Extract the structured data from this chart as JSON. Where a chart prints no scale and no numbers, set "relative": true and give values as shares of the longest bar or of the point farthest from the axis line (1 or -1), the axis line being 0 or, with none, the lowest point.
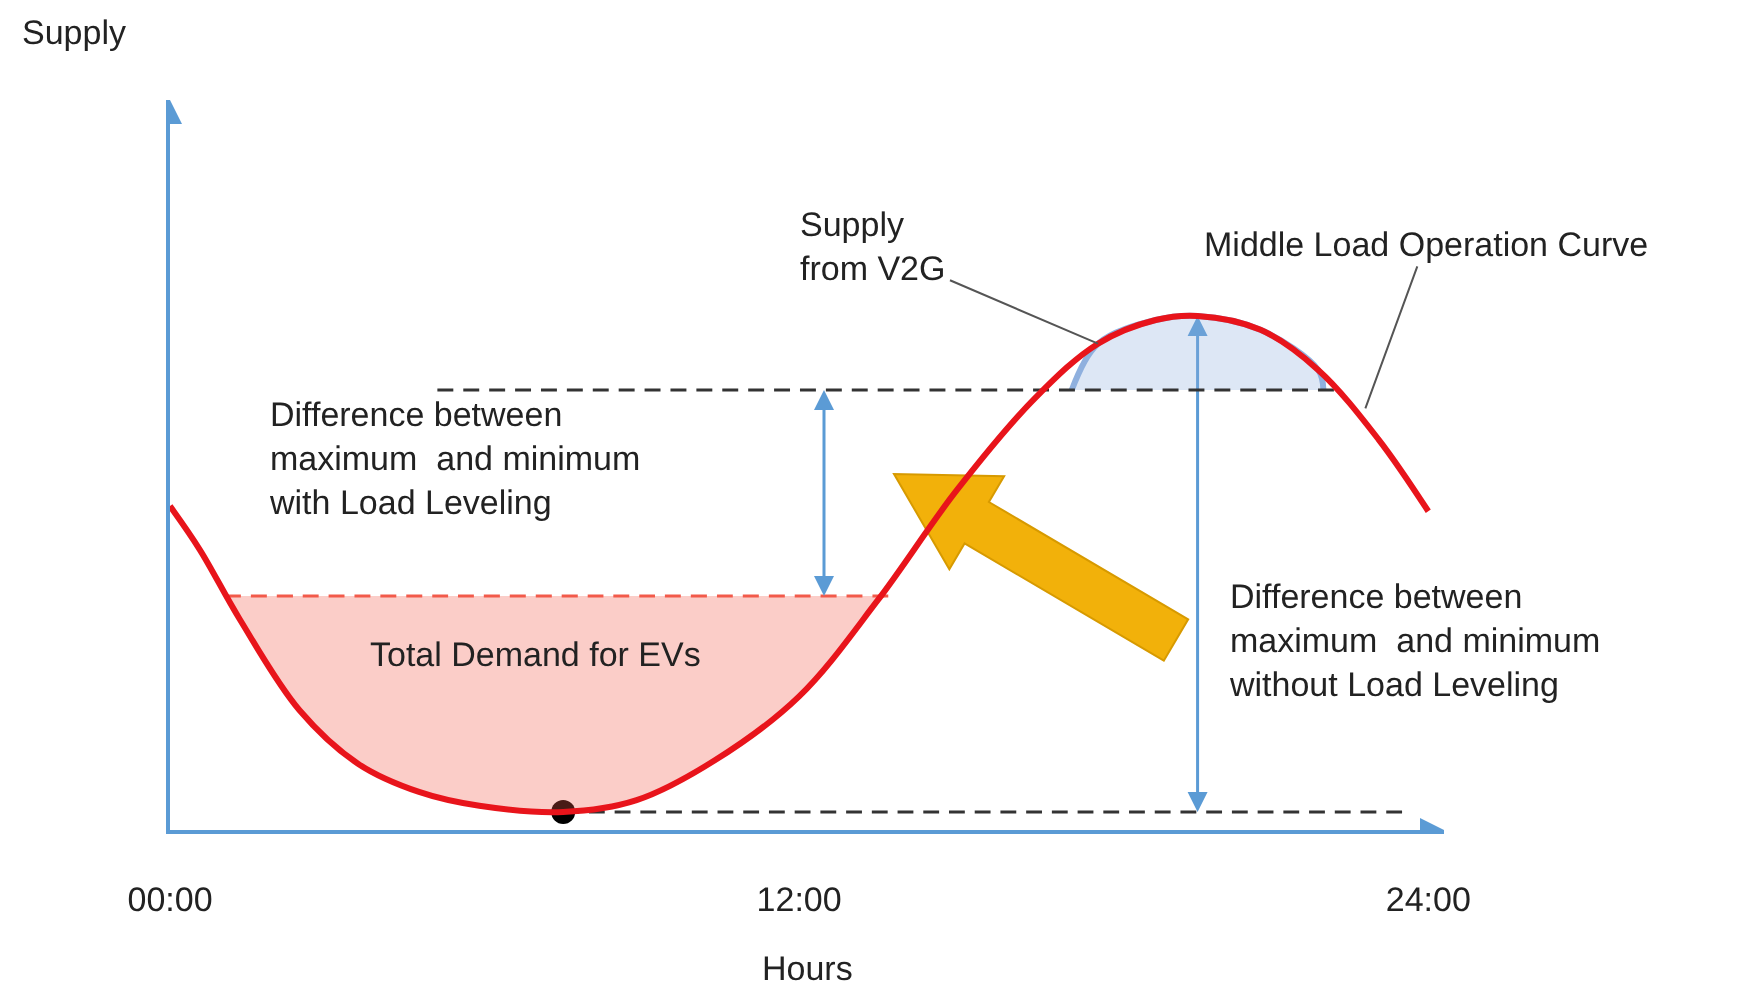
{
  "chart_data": {
    "type": "line",
    "relative": true,
    "xlabel": "Hours",
    "xlim": [
      0,
      24.3
    ],
    "xticks": [
      {
        "value": 0,
        "label": "00:00"
      },
      {
        "value": 12,
        "label": "12:00"
      },
      {
        "value": 24,
        "label": "24:00"
      }
    ],
    "grid": false,
    "marker": "none",
    "series": [
      {
        "color": "#e8141b",
        "line_style": "solid",
        "x": [
          0,
          0.57,
          1.33,
          2.47,
          3.6,
          4.75,
          5.9,
          7.5,
          8.9,
          10.4,
          12,
          13.5,
          15,
          16.5,
          17.7,
          18.8,
          19.6,
          20.8,
          21.9,
          23.05,
          24
        ],
        "values": [
          0.63,
          0.545,
          0.41,
          0.233,
          0.128,
          0.074,
          0.047,
          0.035,
          0.058,
          0.136,
          0.26,
          0.447,
          0.66,
          0.84,
          0.946,
          0.992,
          1.0,
          0.973,
          0.895,
          0.76,
          0.62
        ]
      },
      {
        "color": "#f25a4a",
        "line_style": "dashed",
        "x": [
          1.05,
          1.33,
          2.47,
          3.6,
          4.75,
          5.9,
          7.5,
          8.9,
          10.4,
          12,
          13.5,
          13.7
        ],
        "values": [
          0.455,
          0.455,
          0.455,
          0.455,
          0.455,
          0.455,
          0.455,
          0.455,
          0.455,
          0.455,
          0.455,
          0.455
        ],
        "lower": [
          0.455,
          0.41,
          0.233,
          0.128,
          0.074,
          0.047,
          0.035,
          0.058,
          0.136,
          0.26,
          0.447,
          0.455
        ],
        "upper": [
          0.455,
          0.455,
          0.455,
          0.455,
          0.455,
          0.455,
          0.455,
          0.455,
          0.455,
          0.455,
          0.455,
          0.455
        ]
      },
      {
        "color": "#333333",
        "line_style": "dashed",
        "x": [
          5.1,
          22.2
        ],
        "values": [
          0.856,
          0.856
        ]
      },
      {
        "color": "#8fb0de",
        "line_style": "solid",
        "x": [
          17.2,
          17.7,
          18.8,
          19.6,
          20.8,
          21.9,
          22.0
        ],
        "values": [
          0.856,
          0.946,
          0.992,
          1.0,
          0.973,
          0.895,
          0.856
        ],
        "lower": [
          0.856,
          0.856,
          0.856,
          0.856,
          0.856,
          0.856,
          0.856
        ],
        "upper": [
          0.856,
          0.946,
          0.992,
          1.0,
          0.973,
          0.895,
          0.856
        ]
      },
      {
        "color": "#333333",
        "line_style": "dashed",
        "x": [
          7.5,
          23.5
        ],
        "values": [
          0.035,
          0.035
        ]
      },
      {
        "type": "scatter",
        "color": "#000000",
        "marker": "circle",
        "x": [
          7.5
        ],
        "values": [
          0.035
        ]
      }
    ],
    "annotations": [
      {
        "text": "Supply\nfrom V2G",
        "x": 17.7,
        "y": 0.946
      },
      {
        "text": "Middle Load Operation Curve",
        "x": 22.8,
        "y": 0.82
      },
      "Difference between\nmaximum  and minimum\nwith Load Leveling",
      "Total Demand for EVs",
      "Difference between\nmaximum  and minimum\nwithout Load Leveling",
      "Supply"
    ]
  }
}
